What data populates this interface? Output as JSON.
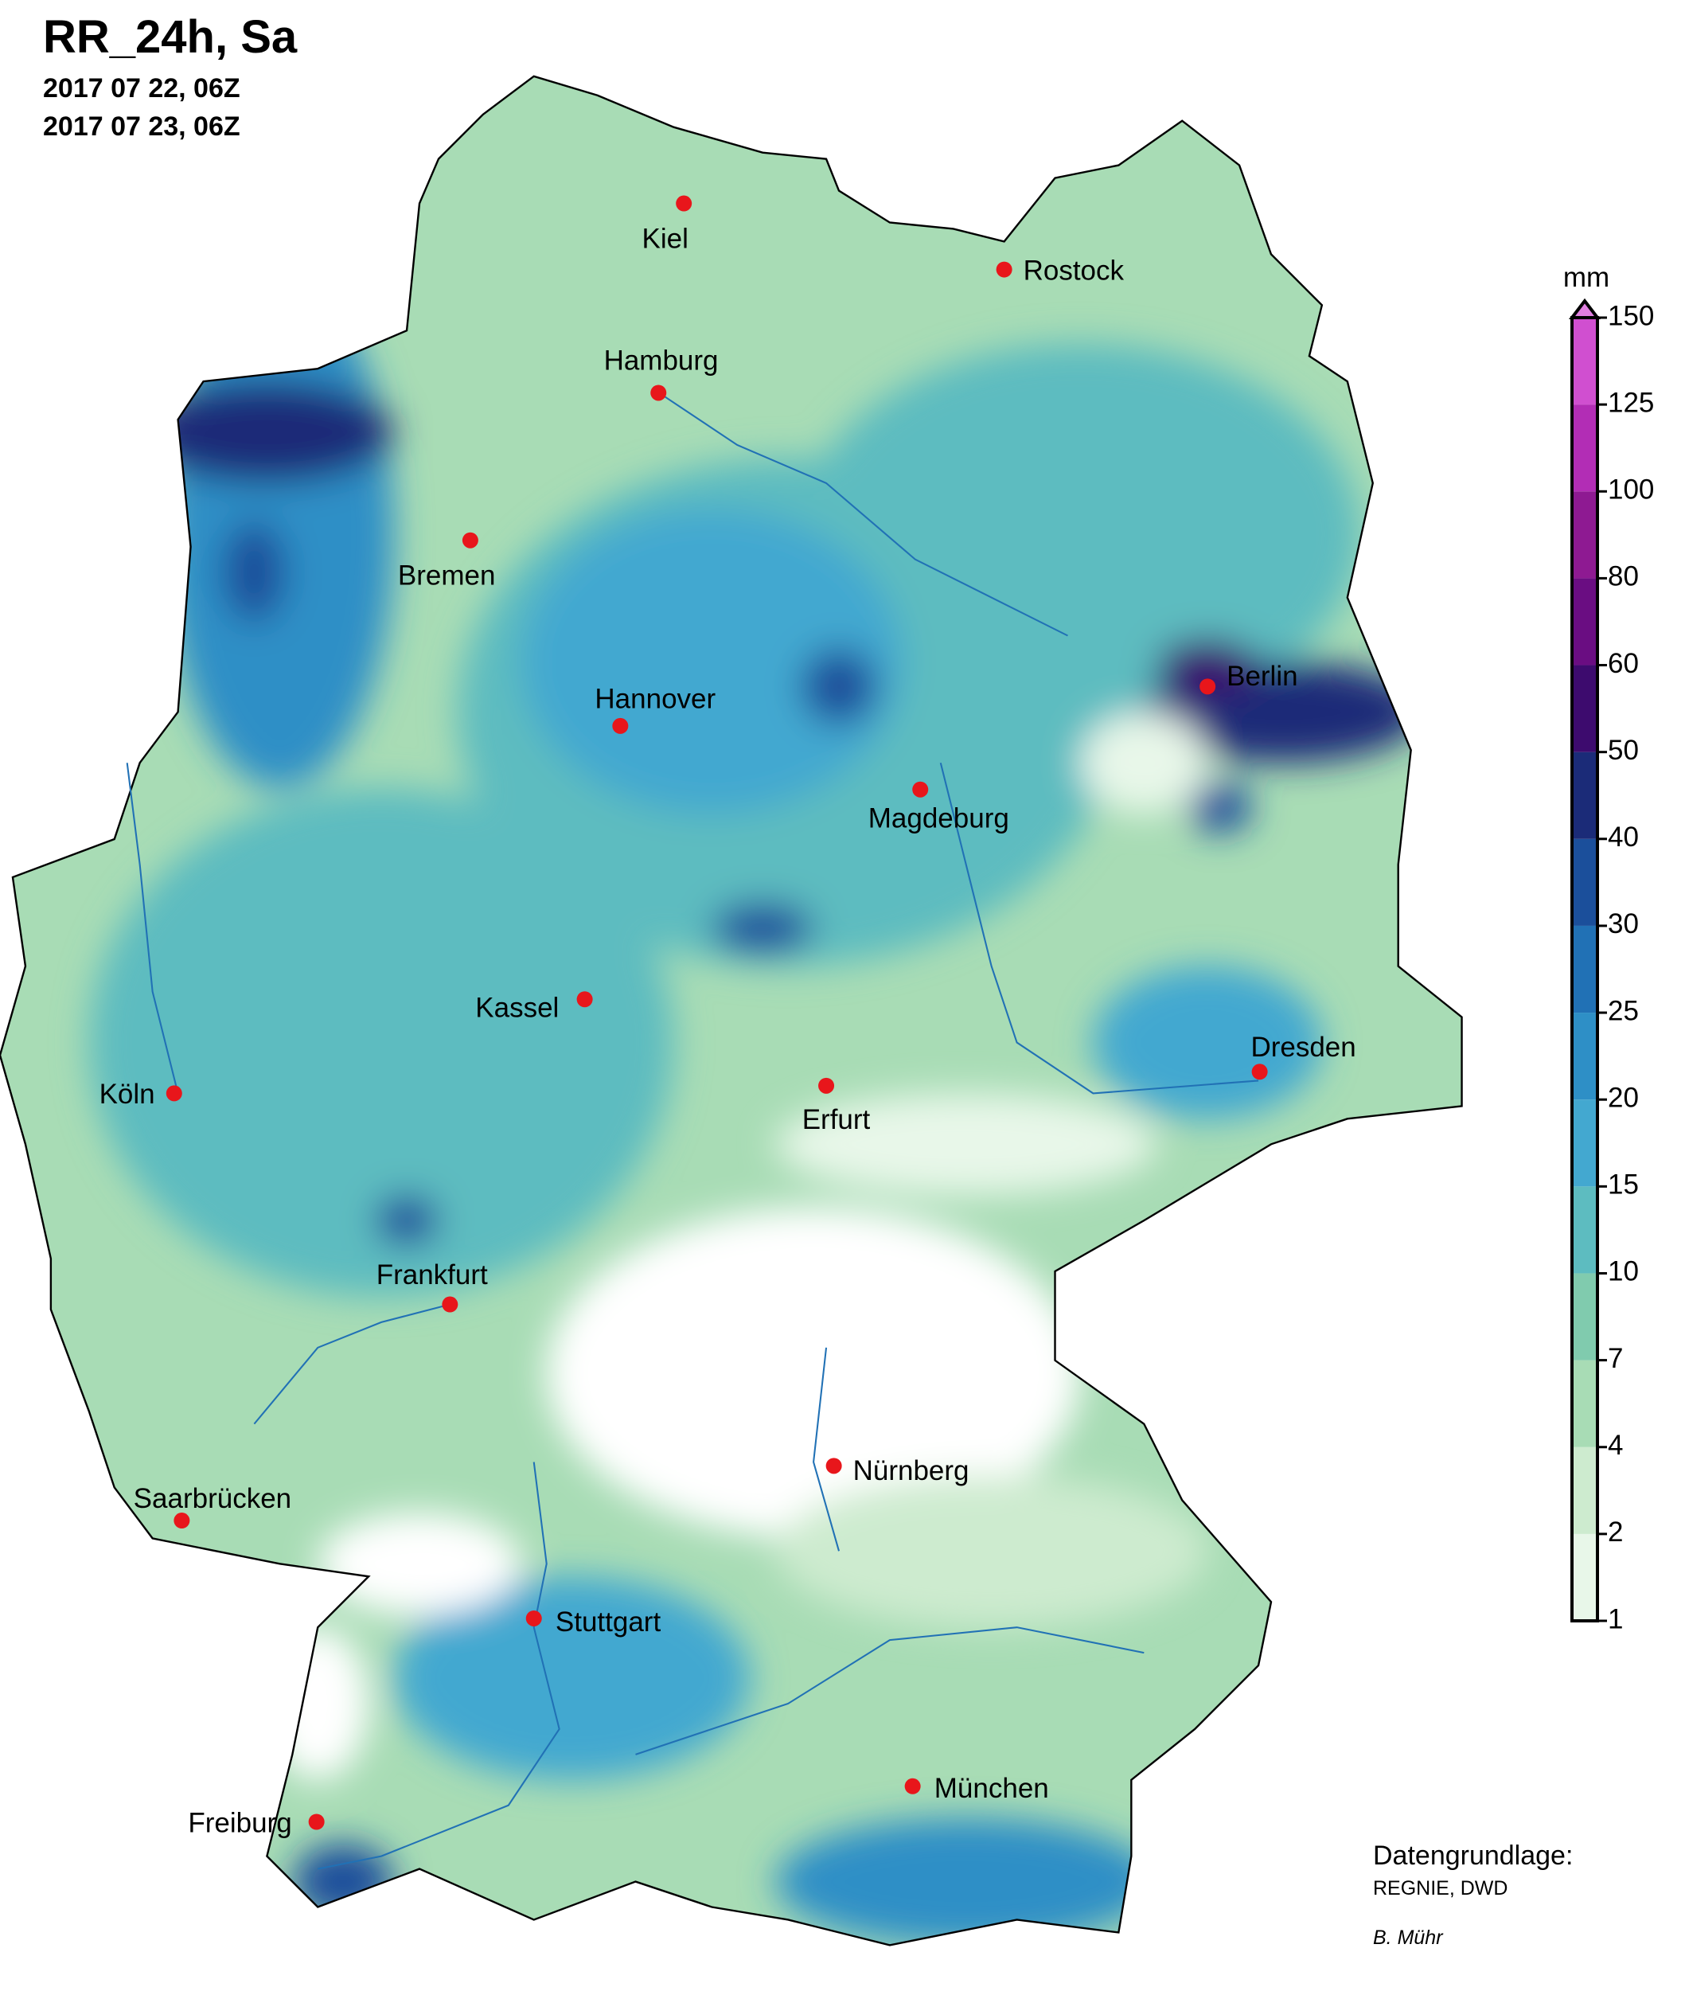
{
  "title": "RR_24h, Sa",
  "dates": [
    "2017 07 22, 06Z",
    "2017 07 23, 06Z"
  ],
  "cities": [
    "Kiel",
    "Rostock",
    "Hamburg",
    "Bremen",
    "Hannover",
    "Berlin",
    "Magdeburg",
    "Kassel",
    "Dresden",
    "Köln",
    "Erfurt",
    "Frankfurt",
    "Nürnberg",
    "Saarbrücken",
    "Stuttgart",
    "München",
    "Freiburg"
  ],
  "colorbar": {
    "unit": "mm",
    "levels": [
      1,
      2,
      4,
      7,
      10,
      15,
      20,
      25,
      30,
      40,
      50,
      60,
      80,
      100,
      125,
      150
    ],
    "colors": [
      "#e8f7e9",
      "#cdebcf",
      "#a8dcb5",
      "#80cbae",
      "#5dbcc0",
      "#43a8d0",
      "#2e8fc6",
      "#2171b5",
      "#1b4f9b",
      "#1b2b78",
      "#3d0b6e",
      "#6a0d82",
      "#8e1a92",
      "#b22db5",
      "#d04fd0"
    ]
  },
  "credits": {
    "heading": "Datengrundlage:",
    "source": "REGNIE, DWD",
    "author": "B. Mühr"
  }
}
